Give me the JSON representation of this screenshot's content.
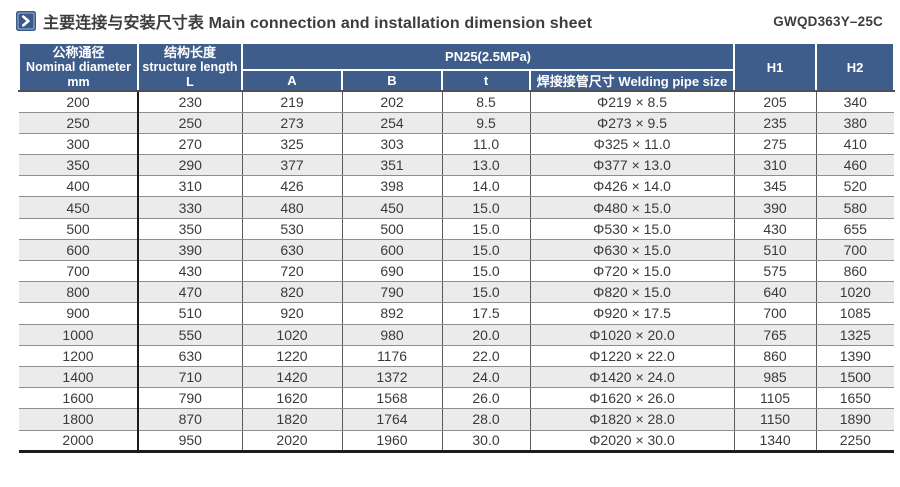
{
  "page": {
    "title_zh": "主要连接与安装尺寸表",
    "title_en": "Main connection and installation dimension sheet",
    "model_code": "GWQD363Y–25C"
  },
  "table": {
    "header": {
      "nominal_diameter": {
        "zh": "公称通径",
        "en": "Nominal diameter",
        "unit": "mm"
      },
      "structure_length": {
        "zh": "结构长度",
        "en": "structure length",
        "unit": "L"
      },
      "pressure_group": "PN25(2.5MPa)",
      "sub_columns": [
        "A",
        "B",
        "t",
        "焊接接管尺寸 Welding pipe size"
      ],
      "h1": "H1",
      "h2": "H2"
    },
    "cell_names": [
      "nominal-diameter",
      "structure-length-l",
      "a",
      "b",
      "t",
      "welding-pipe-size",
      "h1",
      "h2"
    ],
    "rows": [
      [
        "200",
        "230",
        "219",
        "202",
        "8.5",
        "Φ219 × 8.5",
        "205",
        "340"
      ],
      [
        "250",
        "250",
        "273",
        "254",
        "9.5",
        "Φ273 × 9.5",
        "235",
        "380"
      ],
      [
        "300",
        "270",
        "325",
        "303",
        "11.0",
        "Φ325 × 11.0",
        "275",
        "410"
      ],
      [
        "350",
        "290",
        "377",
        "351",
        "13.0",
        "Φ377 × 13.0",
        "310",
        "460"
      ],
      [
        "400",
        "310",
        "426",
        "398",
        "14.0",
        "Φ426 × 14.0",
        "345",
        "520"
      ],
      [
        "450",
        "330",
        "480",
        "450",
        "15.0",
        "Φ480 × 15.0",
        "390",
        "580"
      ],
      [
        "500",
        "350",
        "530",
        "500",
        "15.0",
        "Φ530 × 15.0",
        "430",
        "655"
      ],
      [
        "600",
        "390",
        "630",
        "600",
        "15.0",
        "Φ630 × 15.0",
        "510",
        "700"
      ],
      [
        "700",
        "430",
        "720",
        "690",
        "15.0",
        "Φ720 × 15.0",
        "575",
        "860"
      ],
      [
        "800",
        "470",
        "820",
        "790",
        "15.0",
        "Φ820 × 15.0",
        "640",
        "1020"
      ],
      [
        "900",
        "510",
        "920",
        "892",
        "17.5",
        "Φ920 × 17.5",
        "700",
        "1085"
      ],
      [
        "1000",
        "550",
        "1020",
        "980",
        "20.0",
        "Φ1020 × 20.0",
        "765",
        "1325"
      ],
      [
        "1200",
        "630",
        "1220",
        "1176",
        "22.0",
        "Φ1220 × 22.0",
        "860",
        "1390"
      ],
      [
        "1400",
        "710",
        "1420",
        "1372",
        "24.0",
        "Φ1420 × 24.0",
        "985",
        "1500"
      ],
      [
        "1600",
        "790",
        "1620",
        "1568",
        "26.0",
        "Φ1620 × 26.0",
        "1105",
        "1650"
      ],
      [
        "1800",
        "870",
        "1820",
        "1764",
        "28.0",
        "Φ1820 × 28.0",
        "1150",
        "1890"
      ],
      [
        "2000",
        "950",
        "2020",
        "1960",
        "30.0",
        "Φ2020 × 30.0",
        "1340",
        "2250"
      ]
    ]
  },
  "colors": {
    "header_blue": "#3F5D8B",
    "row_alt": "#EBEBEB",
    "title_text": "#3D3D3D",
    "cell_text": "#3A3A3A",
    "rule_black": "#1C1C1C"
  }
}
